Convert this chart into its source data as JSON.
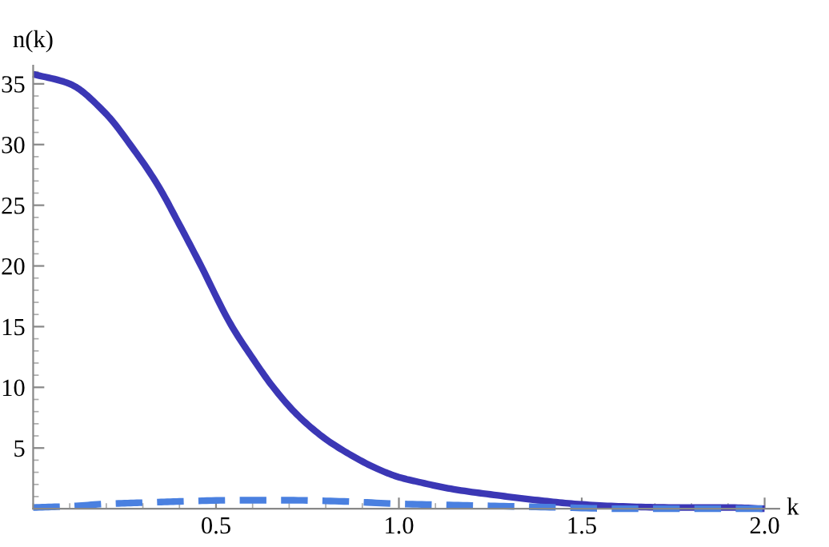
{
  "chart_data": {
    "type": "line",
    "xlabel": "k",
    "ylabel": "n(k)",
    "xlim": [
      0,
      2.04
    ],
    "ylim": [
      0,
      36.5
    ],
    "xticks": [
      0.5,
      {
        "value": 1,
        "label": "1.0"
      },
      1.5,
      {
        "value": 2,
        "label": "2.0"
      }
    ],
    "yticks": [
      5,
      10,
      15,
      20,
      25,
      30,
      35
    ],
    "grid": false,
    "marker": "none",
    "series": [
      {
        "color": "#3b37b5",
        "line_style": "solid",
        "x": [
          0,
          0.1,
          0.197,
          0.27,
          0.34,
          0.4,
          0.454,
          0.54,
          0.6,
          0.654,
          0.72,
          0.797,
          0.87,
          0.94,
          1.0,
          1.054,
          1.15,
          1.27,
          1.38,
          1.48,
          1.6,
          1.75,
          1.9,
          2.0
        ],
        "values": [
          35.8,
          35.0,
          32.6,
          29.8,
          26.7,
          23.4,
          20.3,
          15.2,
          12.4,
          10.1,
          7.8,
          5.8,
          4.4,
          3.3,
          2.6,
          2.2,
          1.6,
          1.1,
          0.7,
          0.4,
          0.2,
          0.1,
          0.1,
          0.0
        ]
      },
      {
        "color": "#4a80e0",
        "line_style": "dashed",
        "x": [
          0,
          0.1,
          0.2,
          0.3,
          0.4,
          0.55,
          0.7,
          0.85,
          1.0,
          1.15,
          1.3,
          1.45,
          1.6,
          1.8,
          2.0
        ],
        "values": [
          0.1,
          0.2,
          0.4,
          0.5,
          0.6,
          0.7,
          0.7,
          0.6,
          0.4,
          0.3,
          0.2,
          0.1,
          0.0,
          0.0,
          0.0
        ]
      }
    ]
  }
}
